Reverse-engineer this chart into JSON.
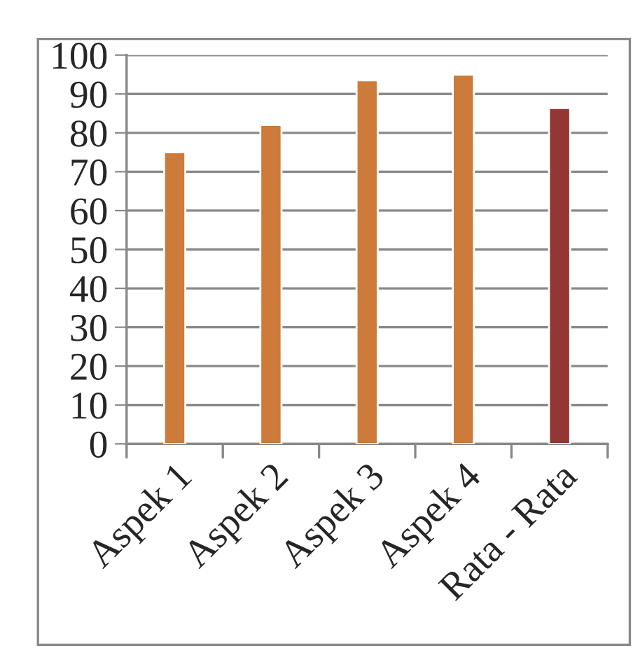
{
  "chart_data": {
    "type": "bar",
    "categories": [
      "Aspek 1",
      "Aspek 2",
      "Aspek 3",
      "Aspek 4",
      "Rata - Rata"
    ],
    "values": [
      75,
      82,
      93.5,
      95,
      86.4
    ],
    "colors": [
      "#cd7b3a",
      "#cd7b3a",
      "#cd7b3a",
      "#cd7b3a",
      "#943634"
    ],
    "ylim": [
      0,
      100
    ],
    "yticks": [
      0,
      10,
      20,
      30,
      40,
      50,
      60,
      70,
      80,
      90,
      100
    ],
    "grid": "y",
    "legend": false
  }
}
